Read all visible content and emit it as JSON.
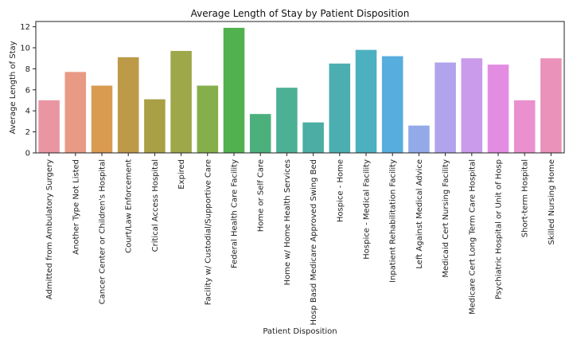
{
  "chart_data": {
    "type": "bar",
    "title": "Average Length of Stay by Patient Disposition",
    "xlabel": "Patient Disposition",
    "ylabel": "Average Length of Stay",
    "ylim": [
      0,
      12.5
    ],
    "yticks": [
      0,
      2,
      4,
      6,
      8,
      10,
      12
    ],
    "grid": false,
    "categories": [
      "Admitted from Ambulatory Surgery",
      "Another Type Not Listed",
      "Cancer Center or Children's Hospital",
      "Court/Law Enforcement",
      "Critical Access Hospital",
      "Expired",
      "Facility w/ Custodial/Supportive Care",
      "Federal Health Care Facility",
      "Home or Self Care",
      "Home w/ Home Health Services",
      "Hosp Basd Medicare Approved Swing Bed",
      "Hospice - Home",
      "Hospice - Medical Facility",
      "Inpatient Rehabilitation Facility",
      "Left Against Medical Advice",
      "Medicaid Cert Nursing Facility",
      "Medicare Cert Long Term Care Hospital",
      "Psychiatric Hospital or Unit of Hosp",
      "Short-term Hospital",
      "Skilled Nursing Home"
    ],
    "values": [
      5.0,
      7.7,
      6.4,
      9.1,
      5.1,
      9.7,
      6.4,
      11.9,
      3.7,
      6.2,
      2.9,
      8.5,
      9.8,
      9.2,
      2.6,
      8.6,
      9.0,
      8.4,
      5.0,
      9.0
    ],
    "colors": [
      "#ea96a2",
      "#e89a85",
      "#d99b50",
      "#bc9a48",
      "#a9a045",
      "#9ea84a",
      "#86ae4a",
      "#51b14f",
      "#4cb07d",
      "#4cb095",
      "#4bada3",
      "#4caeb1",
      "#4cb0c0",
      "#58addf",
      "#93aae9",
      "#b1a3ec",
      "#c99bea",
      "#e28de2",
      "#ea90cf",
      "#ea92b9"
    ]
  }
}
